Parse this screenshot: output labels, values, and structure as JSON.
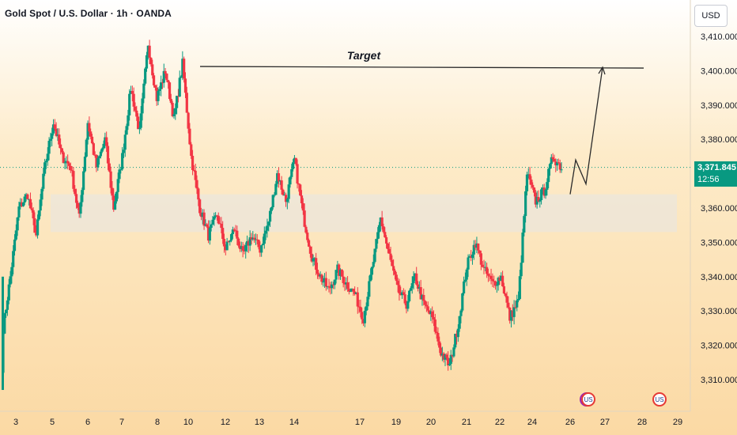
{
  "chart_data": {
    "type": "candlestick",
    "title": "Gold Spot / U.S. Dollar · 1h · OANDA",
    "currency": "USD",
    "y_ticks": [
      "3,410.000",
      "3,400.000",
      "3,390.000",
      "3,380.000",
      "3,370.000",
      "3,360.000",
      "3,350.000",
      "3,340.000",
      "3,330.000",
      "3,320.000",
      "3,310.000"
    ],
    "y_tick_values": [
      3410,
      3400,
      3390,
      3380,
      3370,
      3360,
      3350,
      3340,
      3330,
      3320,
      3310
    ],
    "ylim": [
      3303,
      3416
    ],
    "x_ticks": [
      "3",
      "5",
      "6",
      "7",
      "8",
      "10",
      "12",
      "13",
      "14",
      "17",
      "19",
      "20",
      "21",
      "22",
      "24",
      "26",
      "27",
      "28",
      "29"
    ],
    "current_price": "3,371.845",
    "countdown": "12:56",
    "current_price_value": 3371.845,
    "target_label": "Target",
    "target_level": 3401,
    "zone": {
      "top": 3364,
      "bottom": 3353
    },
    "path": [
      [
        3322,
        3340
      ],
      [
        3340,
        3360
      ],
      [
        3360,
        3364
      ],
      [
        3364,
        3352
      ],
      [
        3352,
        3372
      ],
      [
        3372,
        3385
      ],
      [
        3385,
        3375
      ],
      [
        3375,
        3372
      ],
      [
        3372,
        3357
      ],
      [
        3357,
        3385
      ],
      [
        3385,
        3372
      ],
      [
        3372,
        3380
      ],
      [
        3380,
        3360
      ],
      [
        3360,
        3375
      ],
      [
        3375,
        3395
      ],
      [
        3395,
        3382
      ],
      [
        3382,
        3408
      ],
      [
        3408,
        3392
      ],
      [
        3392,
        3400
      ],
      [
        3400,
        3386
      ],
      [
        3386,
        3402
      ],
      [
        3402,
        3375
      ],
      [
        3375,
        3360
      ],
      [
        3360,
        3352
      ],
      [
        3352,
        3358
      ],
      [
        3358,
        3348
      ],
      [
        3348,
        3354
      ],
      [
        3354,
        3346
      ],
      [
        3346,
        3352
      ],
      [
        3352,
        3348
      ],
      [
        3348,
        3356
      ],
      [
        3356,
        3370
      ],
      [
        3370,
        3362
      ],
      [
        3362,
        3374
      ],
      [
        3374,
        3358
      ],
      [
        3358,
        3346
      ],
      [
        3346,
        3340
      ],
      [
        3340,
        3336
      ],
      [
        3336,
        3342
      ],
      [
        3342,
        3338
      ],
      [
        3338,
        3335
      ],
      [
        3335,
        3328
      ],
      [
        3328,
        3342
      ],
      [
        3342,
        3357
      ],
      [
        3357,
        3346
      ],
      [
        3346,
        3336
      ],
      [
        3336,
        3332
      ],
      [
        3332,
        3340
      ],
      [
        3340,
        3332
      ],
      [
        3332,
        3328
      ],
      [
        3328,
        3318
      ],
      [
        3318,
        3314
      ],
      [
        3314,
        3326
      ],
      [
        3326,
        3343
      ],
      [
        3343,
        3350
      ],
      [
        3350,
        3342
      ],
      [
        3342,
        3338
      ],
      [
        3338,
        3340
      ],
      [
        3340,
        3328
      ],
      [
        3328,
        3333
      ],
      [
        3333,
        3370
      ],
      [
        3370,
        3362
      ],
      [
        3362,
        3365
      ],
      [
        3365,
        3375
      ],
      [
        3375,
        3371.8
      ]
    ],
    "projection": [
      [
        3364,
        3374
      ],
      [
        3374,
        3367
      ],
      [
        3367,
        3401
      ]
    ],
    "events": [
      "flash",
      "us-flag",
      "us-flag"
    ]
  }
}
